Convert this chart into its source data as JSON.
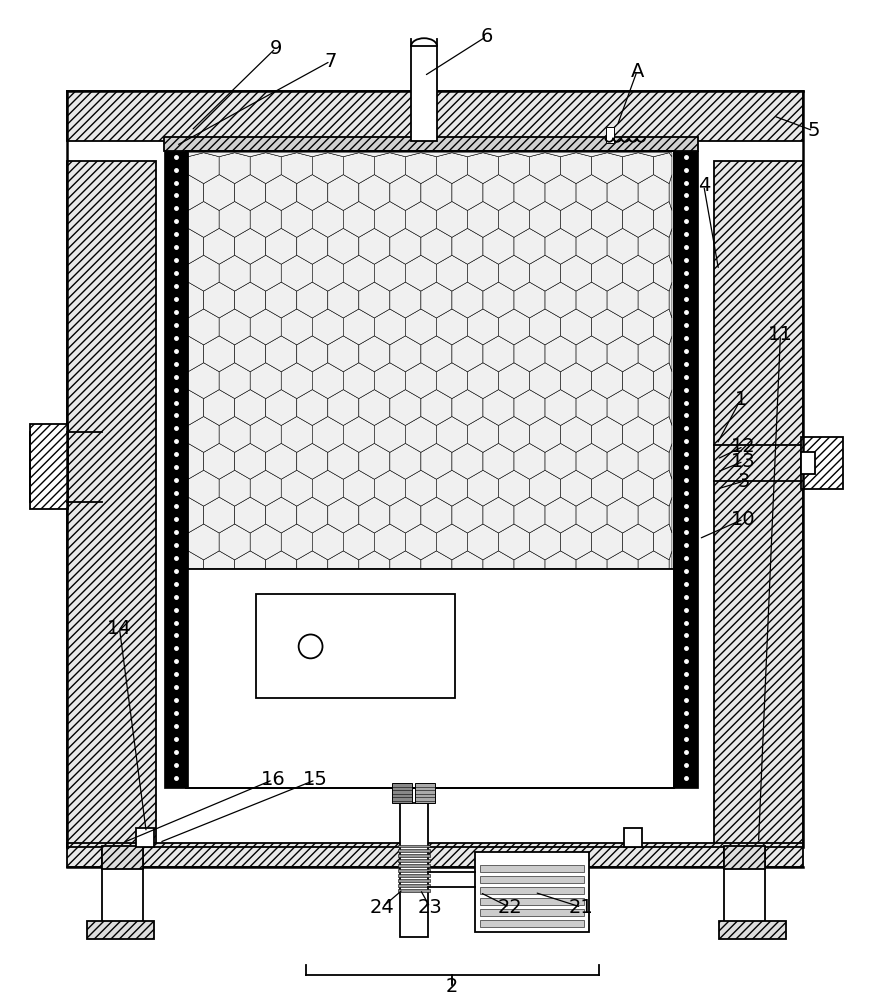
{
  "bg_color": "#ffffff",
  "lc": "#000000",
  "fig_w": 8.74,
  "fig_h": 10.0,
  "dpi": 100
}
